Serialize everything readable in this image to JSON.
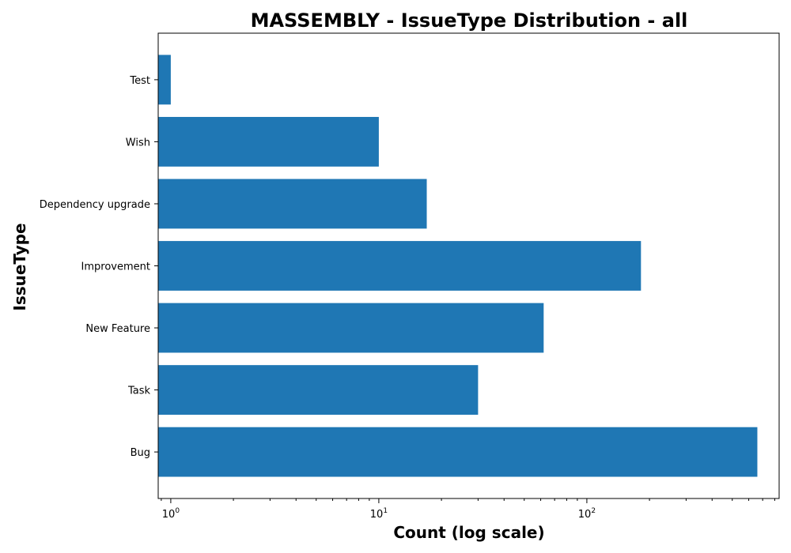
{
  "chart_data": {
    "type": "bar",
    "orientation": "horizontal",
    "title": "MASSEMBLY - IssueType Distribution - all",
    "xlabel": "Count (log scale)",
    "ylabel": "IssueType",
    "x_scale": "log",
    "xlim": [
      0.87,
      840
    ],
    "x_ticks": [
      {
        "value": 1,
        "base": "10",
        "exp": "0"
      },
      {
        "value": 10,
        "base": "10",
        "exp": "1"
      },
      {
        "value": 100,
        "base": "10",
        "exp": "2"
      }
    ],
    "categories": [
      "Bug",
      "Task",
      "New Feature",
      "Improvement",
      "Dependency upgrade",
      "Wish",
      "Test"
    ],
    "values": [
      660,
      30,
      62,
      182,
      17,
      10,
      1
    ],
    "bar_color": "#1f77b4",
    "grid": false,
    "legend": "none"
  }
}
